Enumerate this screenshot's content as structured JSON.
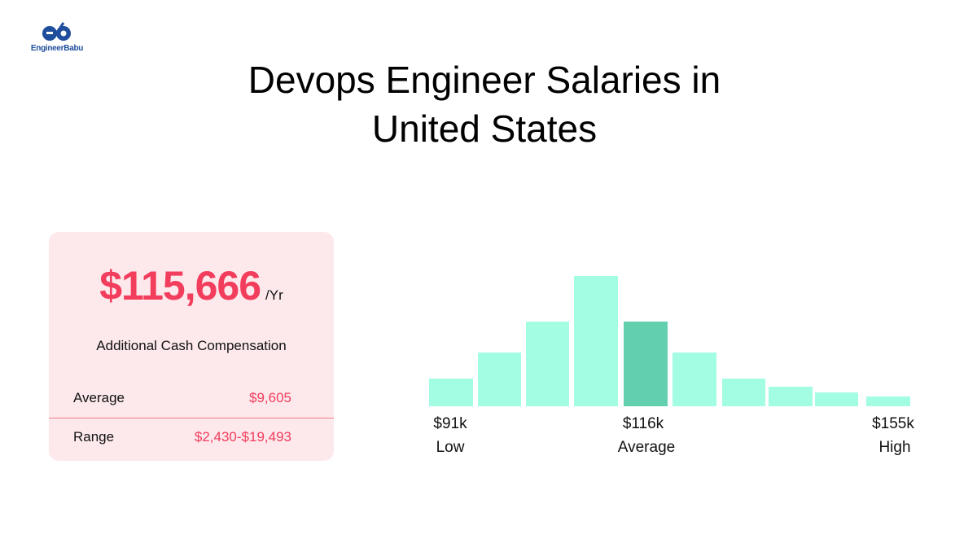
{
  "brand": {
    "name": "EngineerBabu",
    "logo_letters": "eb",
    "color": "#1f4e9c"
  },
  "title": {
    "line1": "Devops Engineer Salaries in",
    "line2": "United States"
  },
  "card": {
    "salary": "$115,666",
    "per": "/Yr",
    "subtitle": "Additional Cash Compensation",
    "rows": [
      {
        "label": "Average",
        "value": "$9,605"
      },
      {
        "label": "Range",
        "value": "$2,430-$19,493"
      }
    ],
    "accent": "#f23d5c",
    "background": "#fde9ec"
  },
  "chart_data": {
    "type": "bar",
    "title": "",
    "xlabel": "",
    "ylabel": "",
    "values": [
      34,
      66,
      104,
      160,
      104,
      66,
      34,
      24,
      17,
      12
    ],
    "highlight_index": 4,
    "colors": {
      "bar": "#a3fde3",
      "highlight": "#62cfae"
    },
    "grid": false,
    "markers": [
      {
        "value": "$91k",
        "label": "Low"
      },
      {
        "value": "$116k",
        "label": "Average"
      },
      {
        "value": "$155k",
        "label": "High"
      }
    ]
  }
}
